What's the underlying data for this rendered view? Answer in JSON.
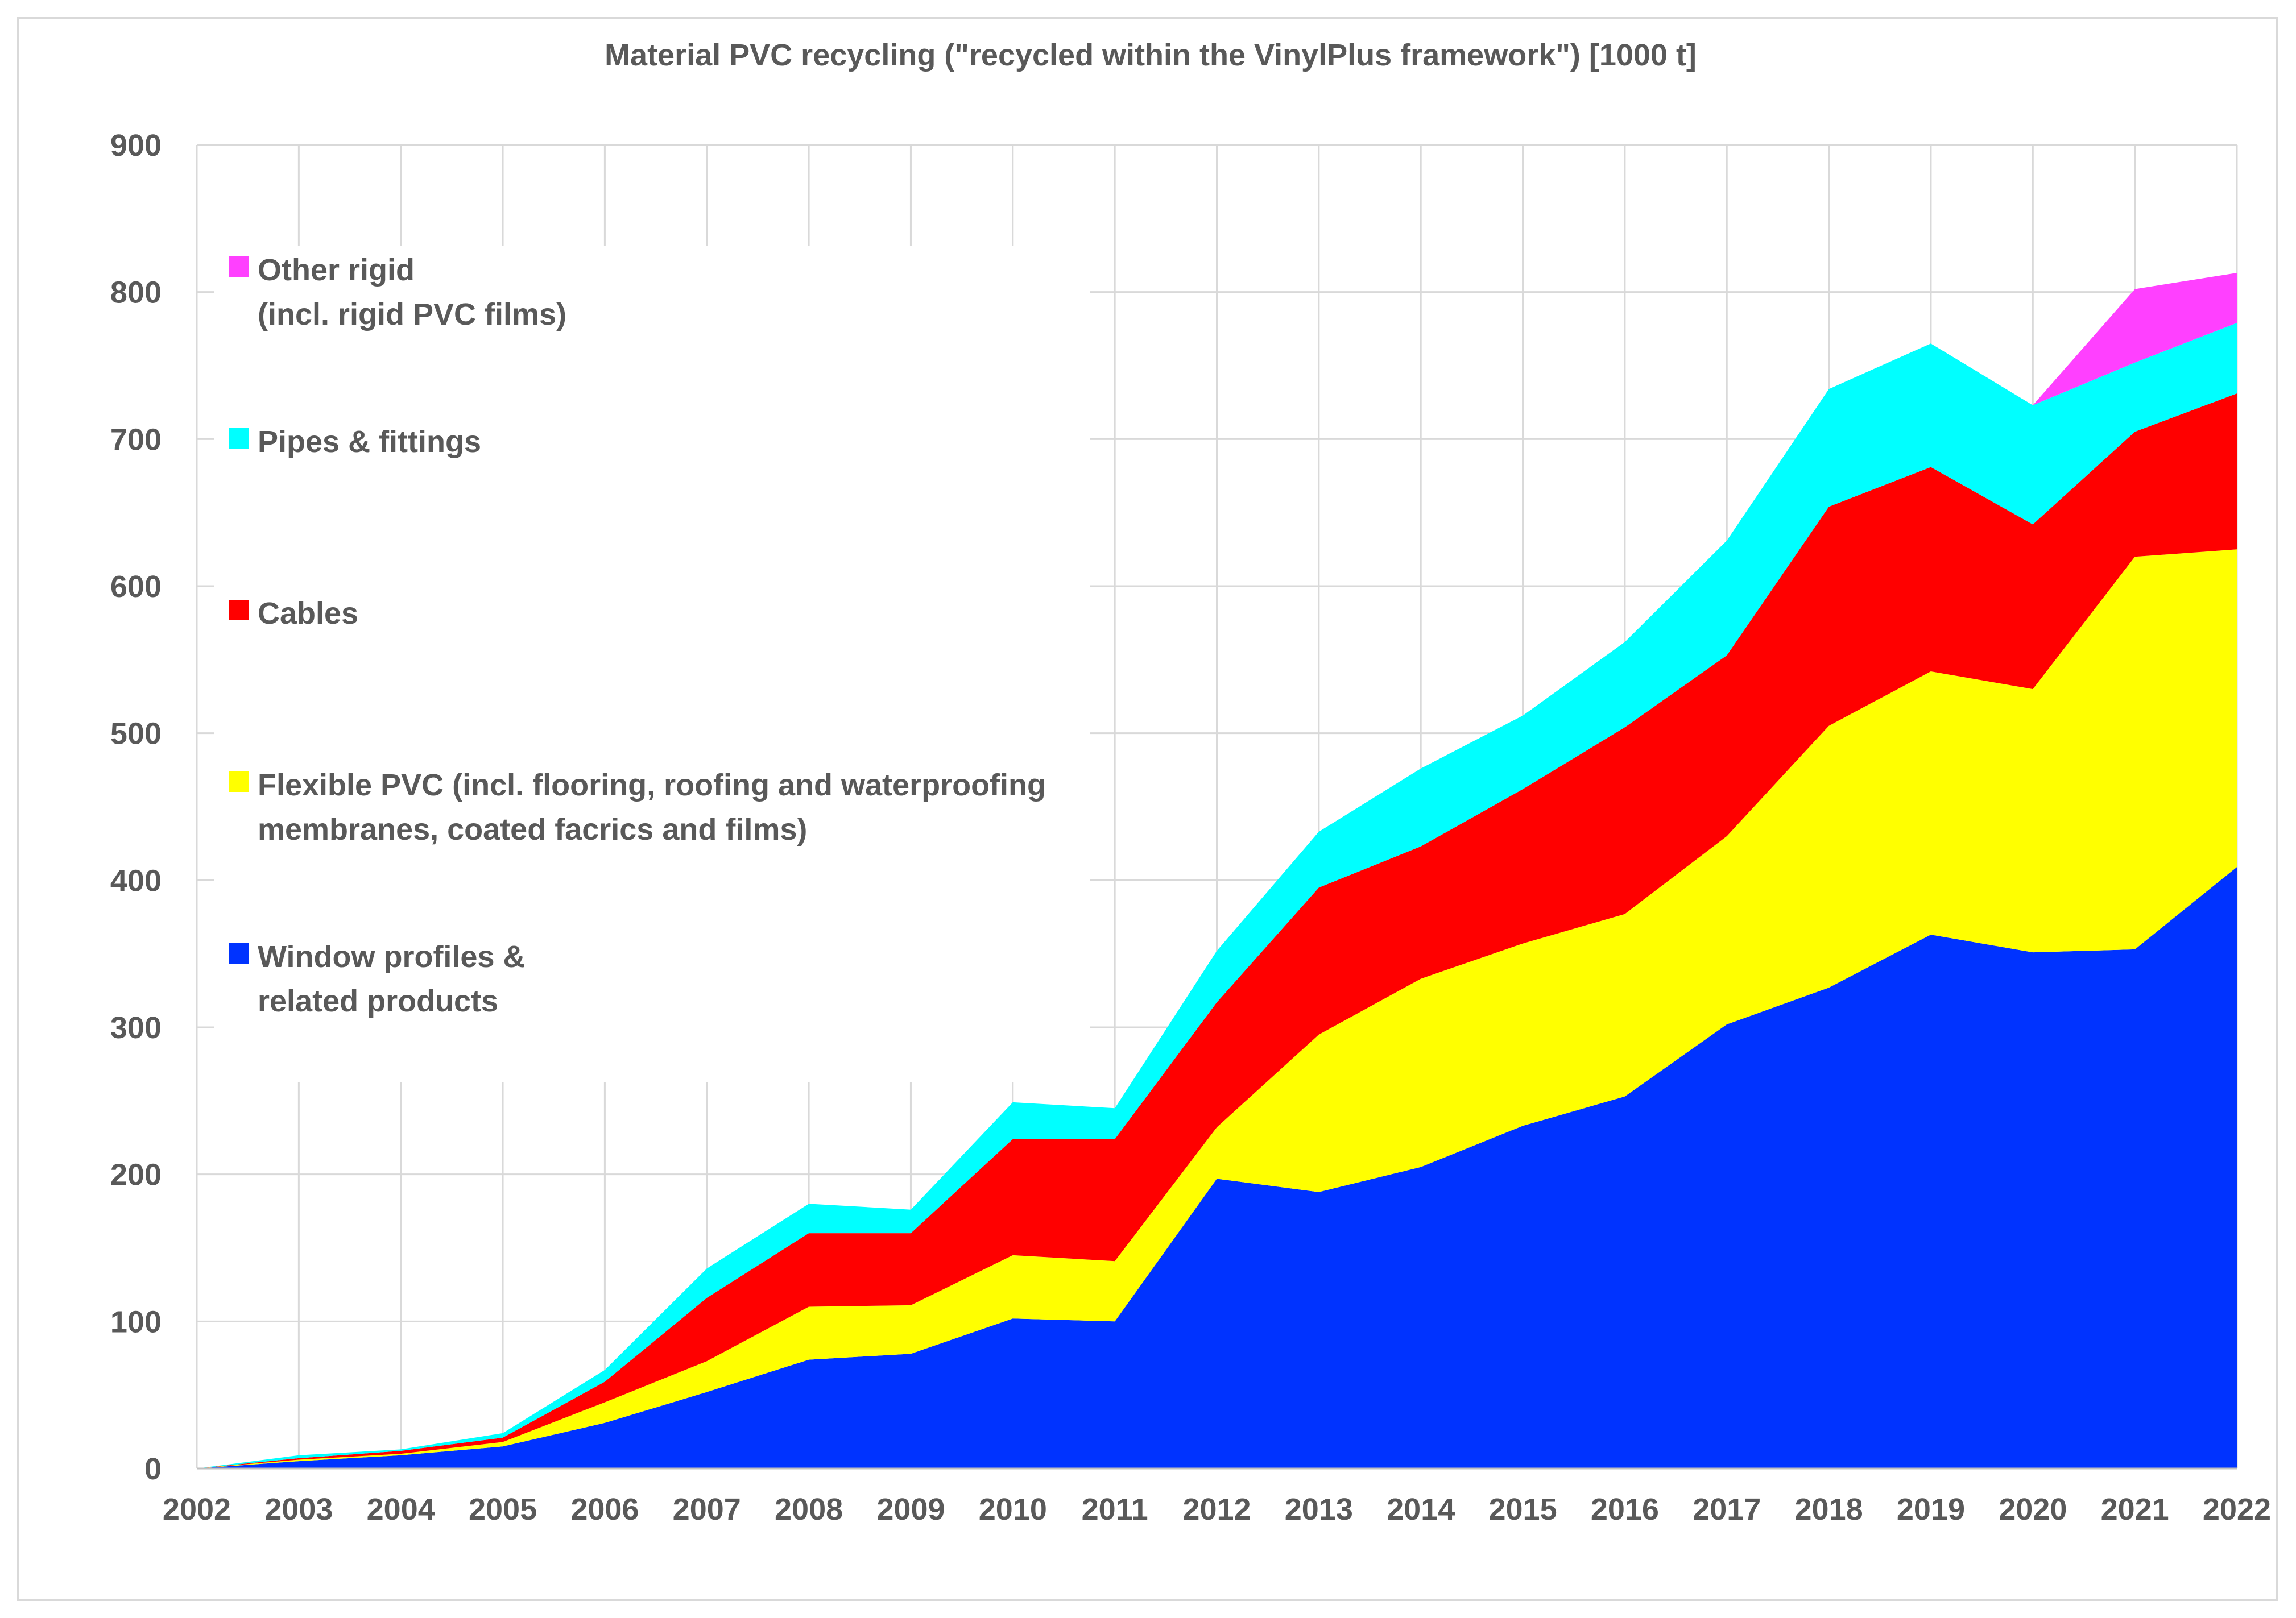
{
  "chart_data": {
    "type": "area",
    "stacked": true,
    "title": "Material PVC recycling (\"recycled within the VinylPlus framework\") [1000 t]",
    "xlabel": "",
    "ylabel": "",
    "ylim": [
      0,
      900
    ],
    "y_ticks": [
      0,
      100,
      200,
      300,
      400,
      500,
      600,
      700,
      800,
      900
    ],
    "x_ticks": [
      "2002",
      "2003",
      "2004",
      "2005",
      "2006",
      "2007",
      "2008",
      "2009",
      "2010",
      "2011",
      "2012",
      "2013",
      "2014",
      "2015",
      "2016",
      "2017",
      "2018",
      "2019",
      "2020",
      "2021",
      "2022"
    ],
    "grid": true,
    "legend_position": "top-left",
    "series": [
      {
        "name": "Window profiles & related products",
        "legend_lines": [
          "Window profiles &",
          "related products"
        ],
        "color": "#0033FF",
        "values": [
          0,
          5,
          9,
          15,
          31,
          52,
          74,
          78,
          102,
          100,
          197,
          188,
          205,
          233,
          253,
          302,
          327,
          363,
          351,
          353,
          409
        ]
      },
      {
        "name": "Flexible PVC (incl. flooring, roofing and waterproofing membranes, coated facrics and films)",
        "legend_lines": [
          "Flexible PVC (incl. flooring, roofing and waterproofing",
          "membranes, coated facrics and films)"
        ],
        "color": "#FFFF00",
        "values": [
          0,
          1,
          1,
          3,
          14,
          21,
          36,
          33,
          43,
          41,
          35,
          107,
          128,
          124,
          124,
          128,
          178,
          179,
          179,
          267,
          216
        ]
      },
      {
        "name": "Cables",
        "legend_lines": [
          "Cables"
        ],
        "color": "#FF0000",
        "values": [
          0,
          1,
          2,
          3,
          14,
          43,
          50,
          49,
          79,
          83,
          85,
          100,
          90,
          105,
          127,
          123,
          149,
          139,
          112,
          85,
          106
        ]
      },
      {
        "name": "Pipes & fittings",
        "legend_lines": [
          "Pipes & fittings"
        ],
        "color": "#00FFFF",
        "values": [
          0,
          2,
          1,
          3,
          8,
          20,
          20,
          16,
          25,
          21,
          35,
          38,
          53,
          50,
          58,
          78,
          80,
          84,
          81,
          47,
          48
        ]
      },
      {
        "name": "Other rigid (incl. rigid PVC films)",
        "legend_lines": [
          "Other rigid",
          "(incl. rigid PVC films)"
        ],
        "color": "#FF40FF",
        "values": [
          0,
          0,
          0,
          0,
          0,
          0,
          0,
          0,
          0,
          0,
          0,
          0,
          0,
          0,
          0,
          0,
          0,
          0,
          0,
          50,
          34
        ]
      }
    ]
  }
}
